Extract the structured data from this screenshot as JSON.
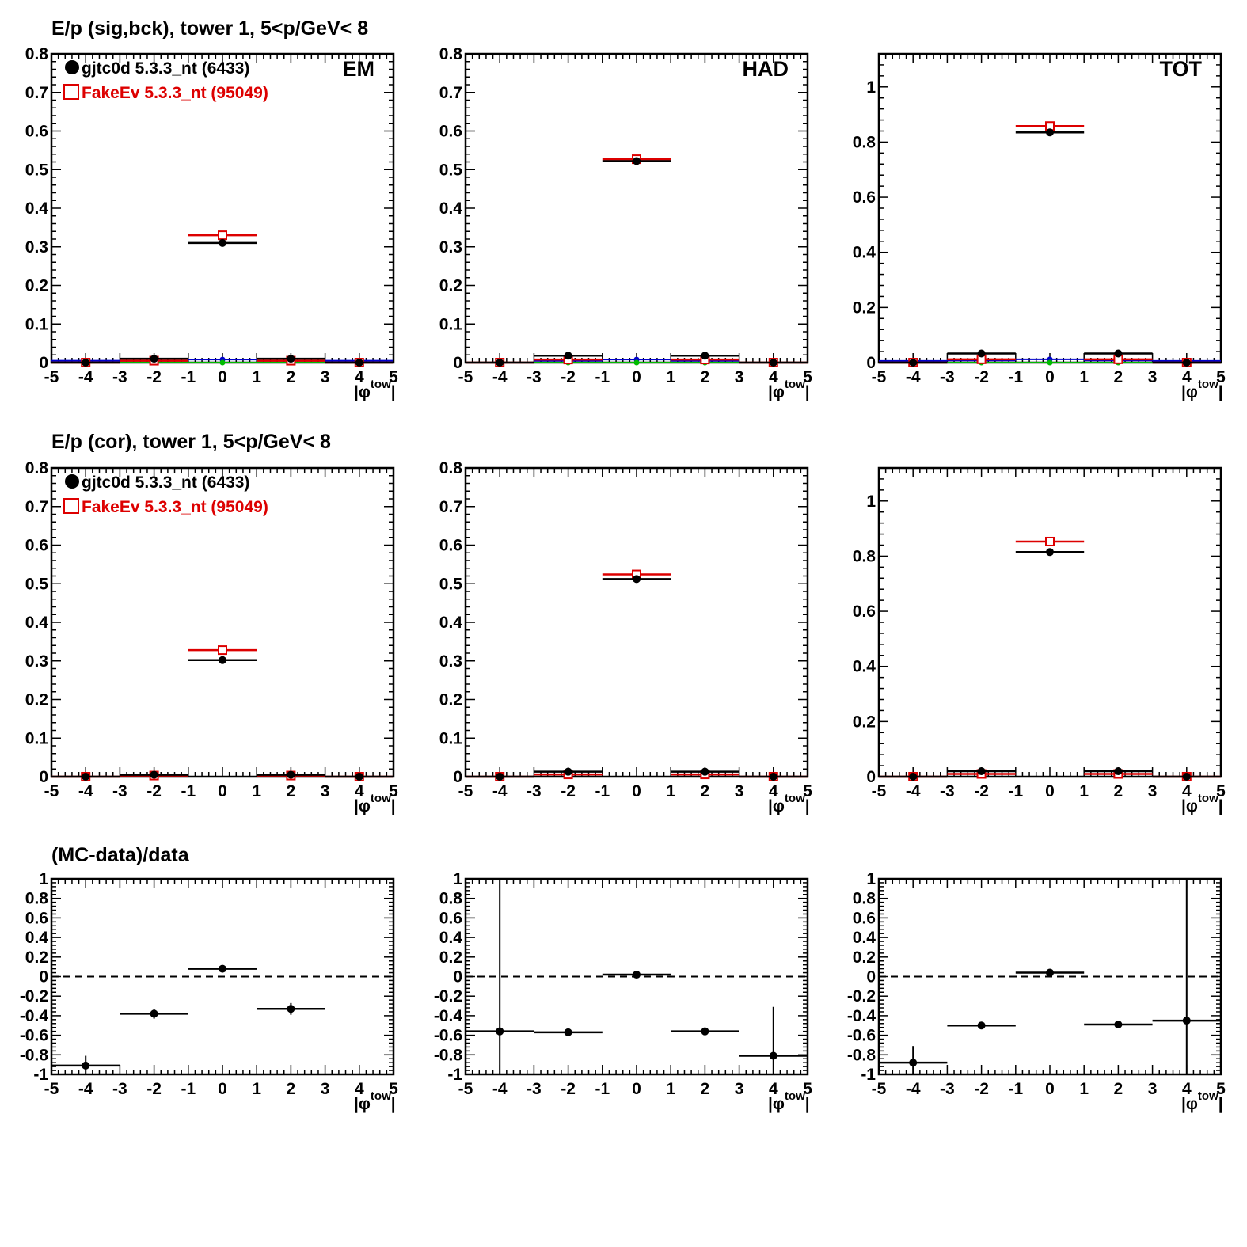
{
  "rows": [
    {
      "title": "E/p (sig,bck), tower 1,  5<p/GeV< 8",
      "legend": [
        {
          "label": "gjtc0d 5.3.3_nt (6433)",
          "color": "#000000",
          "marker": "filled-circle"
        },
        {
          "label": "FakeEv 5.3.3_nt (95049)",
          "color": "#dd0000",
          "marker": "open-square"
        }
      ]
    },
    {
      "title": "E/p (cor), tower 1,  5<p/GeV< 8",
      "legend": [
        {
          "label": "gjtc0d 5.3.3_nt (6433)",
          "color": "#000000",
          "marker": "filled-circle"
        },
        {
          "label": "FakeEv 5.3.3_nt (95049)",
          "color": "#dd0000",
          "marker": "open-square"
        }
      ]
    },
    {
      "title": "(MC-data)/data",
      "legend": []
    }
  ],
  "colors": {
    "data": "#000000",
    "mc": "#dd0000",
    "bck_data": "#0000cc",
    "bck_mc": "#00bb00",
    "zero_line": "#000000"
  },
  "chart_data": [
    {
      "type": "scatter",
      "row": 0,
      "col": 0,
      "label": "EM",
      "xlabel": "|φtow|",
      "xlim": [
        -5,
        5
      ],
      "ylim": [
        0,
        0.8
      ],
      "xticks": [
        "-5",
        "-4",
        "-3",
        "-2",
        "-1",
        "0",
        "1",
        "2",
        "3",
        "4",
        "5"
      ],
      "yticks": [
        "0",
        "0.1",
        "0.2",
        "0.3",
        "0.4",
        "0.5",
        "0.6",
        "0.7",
        "0.8"
      ],
      "series": [
        {
          "name": "gjtc0d 5.3.3_nt (6433)",
          "style": "data",
          "points": [
            {
              "x": -4,
              "y": 0.0,
              "xerr": 1
            },
            {
              "x": -2,
              "y": 0.01,
              "xerr": 1
            },
            {
              "x": 0,
              "y": 0.31,
              "xerr": 1
            },
            {
              "x": 2,
              "y": 0.01,
              "xerr": 1
            },
            {
              "x": 4,
              "y": 0.0,
              "xerr": 1
            }
          ]
        },
        {
          "name": "FakeEv 5.3.3_nt (95049)",
          "style": "mc",
          "points": [
            {
              "x": -4,
              "y": 0.0,
              "xerr": 1
            },
            {
              "x": -2,
              "y": 0.005,
              "xerr": 1
            },
            {
              "x": 0,
              "y": 0.33,
              "xerr": 1
            },
            {
              "x": 2,
              "y": 0.005,
              "xerr": 1
            },
            {
              "x": 4,
              "y": 0.0,
              "xerr": 1
            }
          ]
        },
        {
          "style": "bck_data",
          "points": [
            {
              "x": -4,
              "y": 0.005,
              "xerr": 1
            },
            {
              "x": -2,
              "y": 0.005,
              "xerr": 1
            },
            {
              "x": 0,
              "y": 0.008,
              "xerr": 1
            },
            {
              "x": 2,
              "y": 0.005,
              "xerr": 1
            },
            {
              "x": 4,
              "y": 0.005,
              "xerr": 1
            }
          ]
        },
        {
          "style": "bck_mc",
          "points": [
            {
              "x": -4,
              "y": 0.0,
              "xerr": 1
            },
            {
              "x": -2,
              "y": 0.0,
              "xerr": 1
            },
            {
              "x": 0,
              "y": 0.0,
              "xerr": 1
            },
            {
              "x": 2,
              "y": 0.0,
              "xerr": 1
            },
            {
              "x": 4,
              "y": 0.0,
              "xerr": 1
            }
          ]
        }
      ]
    },
    {
      "type": "scatter",
      "row": 0,
      "col": 1,
      "label": "HAD",
      "xlabel": "|φtow|",
      "xlim": [
        -5,
        5
      ],
      "ylim": [
        0,
        0.8
      ],
      "xticks": [
        "-5",
        "-4",
        "-3",
        "-2",
        "-1",
        "0",
        "1",
        "2",
        "3",
        "4",
        "5"
      ],
      "yticks": [
        "0",
        "0.1",
        "0.2",
        "0.3",
        "0.4",
        "0.5",
        "0.6",
        "0.7",
        "0.8"
      ],
      "series": [
        {
          "name": "gjtc0d 5.3.3_nt (6433)",
          "style": "data",
          "points": [
            {
              "x": -4,
              "y": 0.0,
              "xerr": 1
            },
            {
              "x": -2,
              "y": 0.018,
              "xerr": 1
            },
            {
              "x": 0,
              "y": 0.522,
              "xerr": 1
            },
            {
              "x": 2,
              "y": 0.018,
              "xerr": 1
            },
            {
              "x": 4,
              "y": 0.0,
              "xerr": 1
            }
          ]
        },
        {
          "name": "FakeEv 5.3.3_nt (95049)",
          "style": "mc",
          "points": [
            {
              "x": -4,
              "y": 0.0,
              "xerr": 1
            },
            {
              "x": -2,
              "y": 0.008,
              "xerr": 1
            },
            {
              "x": 0,
              "y": 0.527,
              "xerr": 1
            },
            {
              "x": 2,
              "y": 0.008,
              "xerr": 1
            },
            {
              "x": 4,
              "y": 0.0,
              "xerr": 1
            }
          ]
        },
        {
          "style": "bck_data",
          "points": [
            {
              "x": -4,
              "y": 0.0,
              "xerr": 1
            },
            {
              "x": -2,
              "y": 0.005,
              "xerr": 1
            },
            {
              "x": 0,
              "y": 0.008,
              "xerr": 1
            },
            {
              "x": 2,
              "y": 0.005,
              "xerr": 1
            },
            {
              "x": 4,
              "y": 0.0,
              "xerr": 1
            }
          ]
        },
        {
          "style": "bck_mc",
          "points": [
            {
              "x": -4,
              "y": 0.0,
              "xerr": 1
            },
            {
              "x": -2,
              "y": 0.0,
              "xerr": 1
            },
            {
              "x": 0,
              "y": 0.0,
              "xerr": 1
            },
            {
              "x": 2,
              "y": 0.0,
              "xerr": 1
            },
            {
              "x": 4,
              "y": 0.0,
              "xerr": 1
            }
          ]
        }
      ]
    },
    {
      "type": "scatter",
      "row": 0,
      "col": 2,
      "label": "TOT",
      "xlabel": "|φtow|",
      "xlim": [
        -5,
        5
      ],
      "ylim": [
        0,
        1.12
      ],
      "xticks": [
        "-5",
        "-4",
        "-3",
        "-2",
        "-1",
        "0",
        "1",
        "2",
        "3",
        "4",
        "5"
      ],
      "yticks": [
        "0",
        "0.2",
        "0.4",
        "0.6",
        "0.8",
        "1"
      ],
      "series": [
        {
          "name": "gjtc0d 5.3.3_nt (6433)",
          "style": "data",
          "points": [
            {
              "x": -4,
              "y": 0.0,
              "xerr": 1
            },
            {
              "x": -2,
              "y": 0.033,
              "xerr": 1
            },
            {
              "x": 0,
              "y": 0.835,
              "xerr": 1
            },
            {
              "x": 2,
              "y": 0.033,
              "xerr": 1
            },
            {
              "x": 4,
              "y": 0.0,
              "xerr": 1
            }
          ]
        },
        {
          "name": "FakeEv 5.3.3_nt (95049)",
          "style": "mc",
          "points": [
            {
              "x": -4,
              "y": 0.0,
              "xerr": 1
            },
            {
              "x": -2,
              "y": 0.012,
              "xerr": 1
            },
            {
              "x": 0,
              "y": 0.858,
              "xerr": 1
            },
            {
              "x": 2,
              "y": 0.012,
              "xerr": 1
            },
            {
              "x": 4,
              "y": 0.0,
              "xerr": 1
            }
          ]
        },
        {
          "style": "bck_data",
          "points": [
            {
              "x": -4,
              "y": 0.006,
              "xerr": 1
            },
            {
              "x": -2,
              "y": 0.008,
              "xerr": 1
            },
            {
              "x": 0,
              "y": 0.012,
              "xerr": 1
            },
            {
              "x": 2,
              "y": 0.008,
              "xerr": 1
            },
            {
              "x": 4,
              "y": 0.006,
              "xerr": 1
            }
          ]
        },
        {
          "style": "bck_mc",
          "points": [
            {
              "x": -4,
              "y": 0.0,
              "xerr": 1
            },
            {
              "x": -2,
              "y": 0.0,
              "xerr": 1
            },
            {
              "x": 0,
              "y": 0.0,
              "xerr": 1
            },
            {
              "x": 2,
              "y": 0.0,
              "xerr": 1
            },
            {
              "x": 4,
              "y": 0.0,
              "xerr": 1
            }
          ]
        }
      ]
    },
    {
      "type": "scatter",
      "row": 1,
      "col": 0,
      "label": "",
      "xlabel": "|φtow|",
      "xlim": [
        -5,
        5
      ],
      "ylim": [
        0,
        0.8
      ],
      "xticks": [
        "-5",
        "-4",
        "-3",
        "-2",
        "-1",
        "0",
        "1",
        "2",
        "3",
        "4",
        "5"
      ],
      "yticks": [
        "0",
        "0.1",
        "0.2",
        "0.3",
        "0.4",
        "0.5",
        "0.6",
        "0.7",
        "0.8"
      ],
      "series": [
        {
          "name": "gjtc0d 5.3.3_nt (6433)",
          "style": "data",
          "points": [
            {
              "x": -4,
              "y": 0.0,
              "xerr": 1
            },
            {
              "x": -2,
              "y": 0.005,
              "xerr": 1
            },
            {
              "x": 0,
              "y": 0.302,
              "xerr": 1
            },
            {
              "x": 2,
              "y": 0.005,
              "xerr": 1
            },
            {
              "x": 4,
              "y": 0.0,
              "xerr": 1
            }
          ]
        },
        {
          "name": "FakeEv 5.3.3_nt (95049)",
          "style": "mc",
          "points": [
            {
              "x": -4,
              "y": 0.0,
              "xerr": 1
            },
            {
              "x": -2,
              "y": 0.003,
              "xerr": 1
            },
            {
              "x": 0,
              "y": 0.328,
              "xerr": 1
            },
            {
              "x": 2,
              "y": 0.003,
              "xerr": 1
            },
            {
              "x": 4,
              "y": 0.0,
              "xerr": 1
            }
          ]
        }
      ]
    },
    {
      "type": "scatter",
      "row": 1,
      "col": 1,
      "label": "",
      "xlabel": "|φtow|",
      "xlim": [
        -5,
        5
      ],
      "ylim": [
        0,
        0.8
      ],
      "xticks": [
        "-5",
        "-4",
        "-3",
        "-2",
        "-1",
        "0",
        "1",
        "2",
        "3",
        "4",
        "5"
      ],
      "yticks": [
        "0",
        "0.1",
        "0.2",
        "0.3",
        "0.4",
        "0.5",
        "0.6",
        "0.7",
        "0.8"
      ],
      "series": [
        {
          "name": "gjtc0d 5.3.3_nt (6433)",
          "style": "data",
          "points": [
            {
              "x": -4,
              "y": 0.0,
              "xerr": 1
            },
            {
              "x": -2,
              "y": 0.013,
              "xerr": 1
            },
            {
              "x": 0,
              "y": 0.512,
              "xerr": 1
            },
            {
              "x": 2,
              "y": 0.013,
              "xerr": 1
            },
            {
              "x": 4,
              "y": 0.0,
              "xerr": 1
            }
          ]
        },
        {
          "name": "FakeEv 5.3.3_nt (95049)",
          "style": "mc",
          "points": [
            {
              "x": -4,
              "y": 0.0,
              "xerr": 1
            },
            {
              "x": -2,
              "y": 0.006,
              "xerr": 1
            },
            {
              "x": 0,
              "y": 0.524,
              "xerr": 1
            },
            {
              "x": 2,
              "y": 0.006,
              "xerr": 1
            },
            {
              "x": 4,
              "y": 0.0,
              "xerr": 1
            }
          ]
        }
      ]
    },
    {
      "type": "scatter",
      "row": 1,
      "col": 2,
      "label": "",
      "xlabel": "|φtow|",
      "xlim": [
        -5,
        5
      ],
      "ylim": [
        0,
        1.12
      ],
      "xticks": [
        "-5",
        "-4",
        "-3",
        "-2",
        "-1",
        "0",
        "1",
        "2",
        "3",
        "4",
        "5"
      ],
      "yticks": [
        "0",
        "0.2",
        "0.4",
        "0.6",
        "0.8",
        "1"
      ],
      "series": [
        {
          "name": "gjtc0d 5.3.3_nt (6433)",
          "style": "data",
          "points": [
            {
              "x": -4,
              "y": 0.0,
              "xerr": 1
            },
            {
              "x": -2,
              "y": 0.02,
              "xerr": 1
            },
            {
              "x": 0,
              "y": 0.815,
              "xerr": 1
            },
            {
              "x": 2,
              "y": 0.02,
              "xerr": 1
            },
            {
              "x": 4,
              "y": 0.0,
              "xerr": 1
            }
          ]
        },
        {
          "name": "FakeEv 5.3.3_nt (95049)",
          "style": "mc",
          "points": [
            {
              "x": -4,
              "y": 0.0,
              "xerr": 1
            },
            {
              "x": -2,
              "y": 0.01,
              "xerr": 1
            },
            {
              "x": 0,
              "y": 0.853,
              "xerr": 1
            },
            {
              "x": 2,
              "y": 0.01,
              "xerr": 1
            },
            {
              "x": 4,
              "y": 0.0,
              "xerr": 1
            }
          ]
        }
      ]
    },
    {
      "type": "scatter",
      "row": 2,
      "col": 0,
      "label": "",
      "xlabel": "|φtow|",
      "xlim": [
        -5,
        5
      ],
      "ylim": [
        -1,
        1
      ],
      "xticks": [
        "-5",
        "-4",
        "-3",
        "-2",
        "-1",
        "0",
        "1",
        "2",
        "3",
        "4",
        "5"
      ],
      "yticks": [
        "-1",
        "-0.8",
        "-0.6",
        "-0.4",
        "-0.2",
        "0",
        "0.2",
        "0.4",
        "0.6",
        "0.8",
        "1"
      ],
      "zero_line": true,
      "series": [
        {
          "style": "data",
          "points": [
            {
              "x": -4,
              "y": -0.91,
              "xerr": 1,
              "yerr": 0.1
            },
            {
              "x": -2,
              "y": -0.38,
              "xerr": 1,
              "yerr": 0.05
            },
            {
              "x": 0,
              "y": 0.08,
              "xerr": 1,
              "yerr": 0.02
            },
            {
              "x": 2,
              "y": -0.33,
              "xerr": 1,
              "yerr": 0.06
            }
          ]
        }
      ]
    },
    {
      "type": "scatter",
      "row": 2,
      "col": 1,
      "label": "",
      "xlabel": "|φtow|",
      "xlim": [
        -5,
        5
      ],
      "ylim": [
        -1,
        1
      ],
      "xticks": [
        "-5",
        "-4",
        "-3",
        "-2",
        "-1",
        "0",
        "1",
        "2",
        "3",
        "4",
        "5"
      ],
      "yticks": [
        "-1",
        "-0.8",
        "-0.6",
        "-0.4",
        "-0.2",
        "0",
        "0.2",
        "0.4",
        "0.6",
        "0.8",
        "1"
      ],
      "zero_line": true,
      "series": [
        {
          "style": "data",
          "points": [
            {
              "x": -4,
              "y": -0.56,
              "xerr": 1,
              "yerr": 1.6
            },
            {
              "x": -2,
              "y": -0.57,
              "xerr": 1,
              "yerr": 0.02
            },
            {
              "x": 0,
              "y": 0.02,
              "xerr": 1,
              "yerr": 0.01
            },
            {
              "x": 2,
              "y": -0.56,
              "xerr": 1,
              "yerr": 0.02
            },
            {
              "x": 4,
              "y": -0.81,
              "xerr": 1,
              "yerr": 0.5
            }
          ]
        }
      ]
    },
    {
      "type": "scatter",
      "row": 2,
      "col": 2,
      "label": "",
      "xlabel": "|φtow|",
      "xlim": [
        -5,
        5
      ],
      "ylim": [
        -1,
        1
      ],
      "xticks": [
        "-5",
        "-4",
        "-3",
        "-2",
        "-1",
        "0",
        "1",
        "2",
        "3",
        "4",
        "5"
      ],
      "yticks": [
        "-1",
        "-0.8",
        "-0.6",
        "-0.4",
        "-0.2",
        "0",
        "0.2",
        "0.4",
        "0.6",
        "0.8",
        "1"
      ],
      "zero_line": true,
      "series": [
        {
          "style": "data",
          "points": [
            {
              "x": -4,
              "y": -0.88,
              "xerr": 1,
              "yerr": 0.17
            },
            {
              "x": -2,
              "y": -0.5,
              "xerr": 1,
              "yerr": 0.01
            },
            {
              "x": 0,
              "y": 0.04,
              "xerr": 1,
              "yerr": 0.01
            },
            {
              "x": 2,
              "y": -0.49,
              "xerr": 1,
              "yerr": 0.01
            },
            {
              "x": 4,
              "y": -0.45,
              "xerr": 1,
              "yerr": 1.6
            }
          ]
        }
      ]
    }
  ]
}
